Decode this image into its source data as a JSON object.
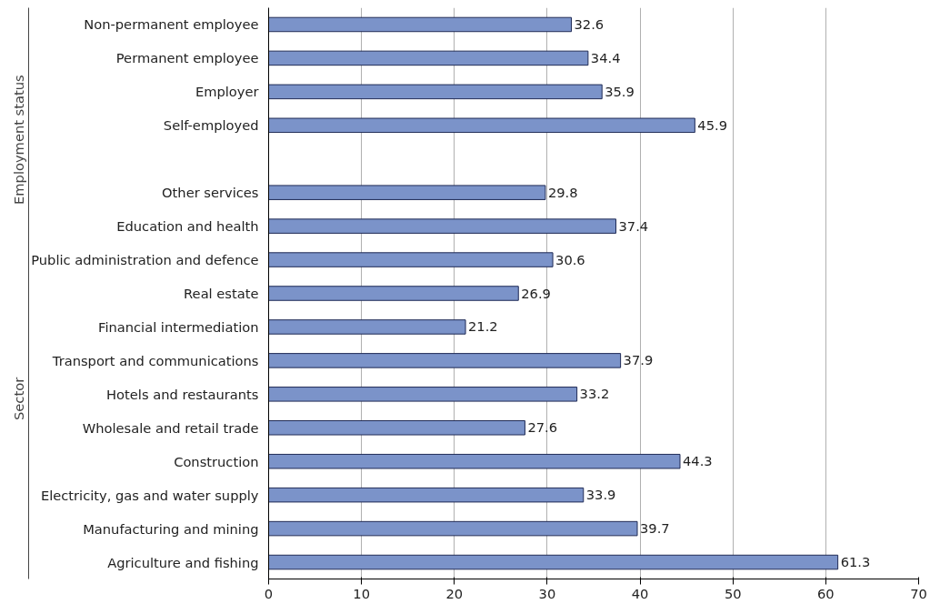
{
  "chart_data": {
    "type": "bar",
    "orientation": "horizontal",
    "categories": [
      "Non-permanent employee",
      "Permanent employee",
      "Employer",
      "Self-employed",
      null,
      "Other services",
      "Education and health",
      "Public administration and defence",
      "Real estate",
      "Financial intermediation",
      "Transport and communications",
      "Hotels and restaurants",
      "Wholesale and retail trade",
      "Construction",
      "Electricity, gas and water supply",
      "Manufacturing and mining",
      "Agriculture and fishing"
    ],
    "values": [
      32.6,
      34.4,
      35.9,
      45.9,
      null,
      29.8,
      37.4,
      30.6,
      26.9,
      21.2,
      37.9,
      33.2,
      27.6,
      44.3,
      33.9,
      39.7,
      61.3
    ],
    "color": "#7b93c9",
    "xlim": [
      0,
      70
    ],
    "xticks": [
      0,
      10,
      20,
      30,
      40,
      50,
      60,
      70
    ],
    "grid": "x",
    "data_labels": true,
    "annotations": [
      "Employment status",
      "Sector"
    ]
  }
}
